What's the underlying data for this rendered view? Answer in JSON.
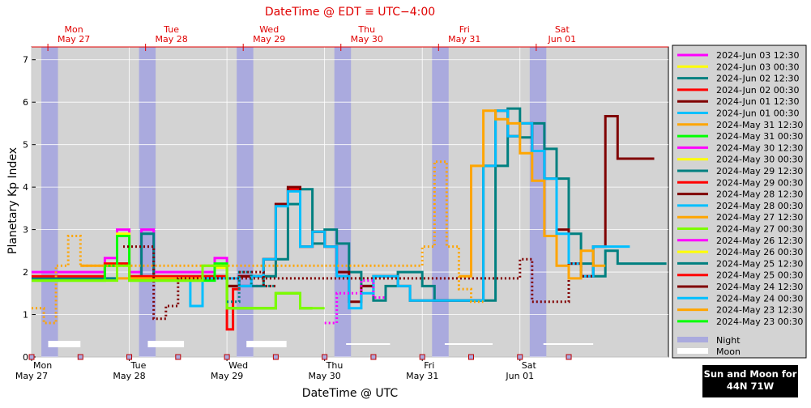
{
  "chart_data": {
    "type": "line",
    "top_title": "DateTime @ EDT ≡ UTC−4:00",
    "xlabel": "DateTime @ UTC",
    "ylabel": "Planetary Kp Index",
    "xlim": [
      0,
      6.52
    ],
    "ylim": [
      0,
      7.3
    ],
    "y_ticks": [
      0,
      1,
      2,
      3,
      4,
      5,
      6,
      7
    ],
    "grid": true,
    "legend_position": "right",
    "bottom_day_labels": [
      {
        "x": 0.0,
        "day": "Mon",
        "date": "May 27"
      },
      {
        "x": 1.0,
        "day": "Tue",
        "date": "May 28"
      },
      {
        "x": 2.0,
        "day": "Wed",
        "date": "May 29"
      },
      {
        "x": 3.0,
        "day": "Thu",
        "date": "May 30"
      },
      {
        "x": 4.0,
        "day": "Fri",
        "date": "May 31"
      },
      {
        "x": 5.0,
        "day": "Sat",
        "date": "Jun 01"
      }
    ],
    "top_day_labels": [
      {
        "x": 0.1667,
        "day": "Mon",
        "date": "May 27"
      },
      {
        "x": 1.1667,
        "day": "Tue",
        "date": "May 28"
      },
      {
        "x": 2.1667,
        "day": "Wed",
        "date": "May 29"
      },
      {
        "x": 3.1667,
        "day": "Thu",
        "date": "May 30"
      },
      {
        "x": 4.1667,
        "day": "Fri",
        "date": "May 31"
      },
      {
        "x": 5.1667,
        "day": "Sat",
        "date": "Jun 01"
      }
    ],
    "night_bands": [
      [
        0.1,
        0.27
      ],
      [
        1.1,
        1.27
      ],
      [
        2.1,
        2.27
      ],
      [
        3.1,
        3.27
      ],
      [
        4.1,
        4.27
      ],
      [
        5.1,
        5.27
      ]
    ],
    "moon_bars": [
      {
        "x0": 0.17,
        "x1": 0.5,
        "thick": true
      },
      {
        "x0": 1.19,
        "x1": 1.56,
        "thick": true
      },
      {
        "x0": 2.2,
        "x1": 2.61,
        "thick": true
      },
      {
        "x0": 3.22,
        "x1": 3.67,
        "thick": false
      },
      {
        "x0": 4.23,
        "x1": 4.72,
        "thick": false
      },
      {
        "x0": 5.24,
        "x1": 5.75,
        "thick": false
      }
    ],
    "series": [
      {
        "name": "2024-Jun 03 12:30",
        "color": "#ff00ff",
        "style": "solid",
        "x": [
          0.0,
          0.5,
          0.75,
          0.875,
          1.0,
          1.125,
          1.25,
          1.75,
          1.875,
          2.0,
          2.125,
          2.25
        ],
        "y": [
          2.0,
          2.0,
          2.33,
          3.0,
          2.0,
          3.0,
          2.0,
          2.0,
          2.33,
          1.67,
          1.67,
          1.67
        ]
      },
      {
        "name": "2024-Jun 03 00:30",
        "color": "#ffff00",
        "style": "solid",
        "x": [
          0.0,
          0.5,
          0.75,
          0.875,
          1.0,
          1.25,
          1.75,
          1.875,
          2.0
        ],
        "y": [
          1.83,
          1.83,
          2.2,
          2.9,
          1.85,
          1.85,
          1.85,
          2.1,
          1.67
        ]
      },
      {
        "name": "2024-Jun 02 12:30",
        "color": "#008080",
        "style": "solid",
        "x": [
          0.0,
          0.5,
          0.875,
          1.0,
          1.125,
          1.25,
          1.75,
          2.0,
          2.125,
          2.25,
          2.375,
          2.5,
          2.625,
          2.75,
          2.875,
          3.0,
          3.125,
          3.25,
          3.375,
          3.5,
          3.625,
          3.75,
          3.875,
          4.0,
          4.125,
          4.25,
          4.5,
          4.625,
          4.75,
          4.875,
          5.0,
          5.125,
          5.25,
          5.375,
          5.5,
          5.625,
          5.75,
          5.875,
          6.0,
          6.125,
          6.25,
          6.375
        ],
        "y": [
          1.85,
          1.85,
          2.2,
          1.85,
          2.9,
          1.85,
          1.9,
          1.67,
          1.67,
          1.67,
          1.9,
          2.3,
          3.6,
          3.95,
          2.67,
          3.0,
          2.67,
          2.0,
          1.67,
          1.33,
          1.67,
          2.0,
          2.0,
          1.67,
          1.33,
          1.33,
          1.33,
          1.33,
          4.5,
          5.85,
          5.17,
          5.5,
          4.9,
          4.2,
          2.9,
          2.2,
          1.9,
          2.5,
          2.2,
          2.2,
          2.2,
          2.2
        ]
      },
      {
        "name": "2024-Jun 02 00:30",
        "color": "#ff0000",
        "style": "solid",
        "x": [
          0.0,
          0.5,
          0.75,
          0.875,
          1.0,
          1.25,
          1.75,
          2.0,
          2.0625,
          2.125,
          2.375,
          2.5,
          2.625,
          2.75,
          2.875,
          3.0
        ],
        "y": [
          1.9,
          1.9,
          2.2,
          2.2,
          1.9,
          1.9,
          1.9,
          0.65,
          1.6,
          1.9,
          2.3,
          3.6,
          3.95,
          2.6,
          2.95,
          2.6
        ]
      },
      {
        "name": "2024-Jun 01 12:30",
        "color": "#800000",
        "style": "solid",
        "x": [
          2.0,
          2.125,
          2.25,
          2.375,
          2.5,
          2.625,
          2.75,
          2.875,
          3.0,
          3.125,
          3.25,
          3.375,
          3.5,
          3.625,
          3.75,
          3.875,
          4.0,
          4.125,
          4.5,
          4.625,
          4.75,
          4.875,
          5.0,
          5.125,
          5.25,
          5.375,
          5.5,
          5.625,
          5.75,
          5.875,
          6.0,
          6.125,
          6.25
        ],
        "y": [
          1.67,
          1.9,
          1.9,
          2.3,
          3.6,
          4.0,
          2.6,
          2.95,
          2.6,
          2.0,
          1.3,
          1.67,
          1.9,
          1.9,
          1.67,
          1.33,
          1.33,
          1.33,
          1.33,
          4.5,
          5.8,
          5.2,
          5.5,
          4.85,
          4.2,
          3.0,
          2.2,
          1.9,
          2.6,
          5.67,
          4.67,
          4.67,
          4.67
        ]
      },
      {
        "name": "2024-Jun 01 00:30",
        "color": "#00bfff",
        "style": "solid",
        "x": [
          1.25,
          1.625,
          1.75,
          2.125,
          2.25,
          2.375,
          2.5,
          2.625,
          2.75,
          2.875,
          3.0,
          3.125,
          3.25,
          3.375,
          3.5,
          3.625,
          3.75,
          3.875,
          4.0,
          4.125,
          4.5,
          4.625,
          4.75,
          4.875,
          5.0,
          5.125,
          5.25,
          5.375,
          5.5,
          5.625,
          5.75,
          5.875,
          6.0
        ],
        "y": [
          1.85,
          1.2,
          1.85,
          1.67,
          1.9,
          2.3,
          3.55,
          3.9,
          2.6,
          2.95,
          2.6,
          1.9,
          1.15,
          1.5,
          1.9,
          1.9,
          1.67,
          1.33,
          1.33,
          1.33,
          1.33,
          4.5,
          5.8,
          5.2,
          5.5,
          4.85,
          4.2,
          2.9,
          2.2,
          1.9,
          2.6,
          2.6,
          2.6
        ]
      },
      {
        "name": "2024-May 31 12:30",
        "color": "#ffa500",
        "style": "solid",
        "x": [
          0.5,
          0.875,
          1.0,
          1.125,
          1.25,
          1.5,
          1.75,
          2.0,
          2.25,
          2.5,
          2.75
        ],
        "y": [
          2.15,
          1.85,
          1.85,
          1.85,
          1.85,
          1.85,
          2.15,
          1.15,
          1.15,
          1.5,
          1.15
        ]
      },
      {
        "name": "2024-May 31 00:30",
        "color": "#00ff00",
        "style": "solid",
        "x": [
          0.0,
          0.5,
          0.75,
          0.875,
          1.0,
          1.25,
          1.75,
          1.875,
          2.0,
          2.25,
          2.5,
          2.75
        ],
        "y": [
          1.8,
          1.8,
          2.15,
          2.85,
          1.8,
          1.8,
          1.8,
          2.2,
          1.15,
          1.15,
          1.5,
          1.15
        ]
      },
      {
        "name": "2024-May 30 12:30",
        "color": "#ff00ff",
        "style": "solid",
        "x": [],
        "y": []
      },
      {
        "name": "2024-May 30 00:30",
        "color": "#ffff00",
        "style": "solid",
        "x": [],
        "y": []
      },
      {
        "name": "2024-May 29 12:30",
        "color": "#008080",
        "style": "solid",
        "x": [],
        "y": []
      },
      {
        "name": "2024-May 29 00:30",
        "color": "#ff0000",
        "style": "solid",
        "x": [],
        "y": []
      },
      {
        "name": "2024-May 28 12:30",
        "color": "#800000",
        "style": "dotted",
        "x": [
          0.9375,
          1.0625,
          1.25,
          1.375,
          1.5,
          5.0,
          5.125,
          5.25,
          5.375,
          5.5,
          5.625
        ],
        "y": [
          2.6,
          2.6,
          0.9,
          1.2,
          1.85,
          2.3,
          1.3,
          1.3,
          1.3,
          2.2,
          1.9
        ]
      },
      {
        "name": "2024-May 28 00:30",
        "color": "#00bfff",
        "style": "solid",
        "x": [],
        "y": []
      },
      {
        "name": "2024-May 27 12:30",
        "color": "#ffa500",
        "style": "dotted",
        "x": [
          0.0,
          0.125,
          0.25,
          0.375,
          0.5,
          4.0,
          4.125,
          4.25,
          4.375,
          4.5
        ],
        "y": [
          1.15,
          0.8,
          2.15,
          2.85,
          2.15,
          2.6,
          4.6,
          2.6,
          1.6,
          1.3
        ]
      },
      {
        "name": "2024-May 27 00:30",
        "color": "#7cfc00",
        "style": "solid",
        "x": [
          0.0,
          0.375,
          0.75,
          0.875,
          1.0,
          1.25,
          1.75,
          2.0,
          2.25,
          2.5,
          2.75,
          2.875
        ],
        "y": [
          1.8,
          1.8,
          1.8,
          2.15,
          1.8,
          1.8,
          2.15,
          1.15,
          1.15,
          1.5,
          1.15,
          1.15
        ]
      },
      {
        "name": "2024-May 26 12:30",
        "color": "#ff00ff",
        "style": "dotted",
        "x": [
          3.0,
          3.125,
          3.25,
          3.375,
          3.5
        ],
        "y": [
          0.8,
          1.5,
          1.5,
          1.8,
          1.4
        ]
      },
      {
        "name": "2024-May 26 00:30",
        "color": "#ffff00",
        "style": "solid",
        "x": [],
        "y": []
      },
      {
        "name": "2024-May 25 12:30",
        "color": "#008080",
        "style": "dotted",
        "x": [
          2.0,
          2.125,
          2.25,
          2.375
        ],
        "y": [
          1.3,
          2.0,
          1.67,
          1.67
        ]
      },
      {
        "name": "2024-May 25 00:30",
        "color": "#ff0000",
        "style": "solid",
        "x": [],
        "y": []
      },
      {
        "name": "2024-May 24 12:30",
        "color": "#800000",
        "style": "dotted",
        "x": [
          2.125,
          2.25,
          2.375
        ],
        "y": [
          2.0,
          2.0,
          1.67
        ]
      },
      {
        "name": "2024-May 24 00:30",
        "color": "#00bfff",
        "style": "solid",
        "x": [],
        "y": []
      },
      {
        "name": "2024-May 23 12:30",
        "color": "#ffa500",
        "style": "solid",
        "x": [
          4.375,
          4.5,
          4.625,
          4.75,
          4.875,
          5.0,
          5.125,
          5.25,
          5.375,
          5.5,
          5.625,
          5.75
        ],
        "y": [
          1.9,
          4.5,
          5.8,
          5.6,
          5.5,
          4.8,
          4.15,
          2.85,
          2.15,
          1.85,
          2.5,
          2.15
        ]
      },
      {
        "name": "2024-May 23 00:30",
        "color": "#00ff00",
        "style": "solid",
        "x": [],
        "y": []
      }
    ],
    "extra_legend": [
      {
        "name": "Night",
        "color": "#aaaade"
      },
      {
        "name": "Moon",
        "color": "#ffffff"
      }
    ]
  },
  "badge": {
    "line1": "Sun and Moon for",
    "line2": "44N 71W"
  }
}
